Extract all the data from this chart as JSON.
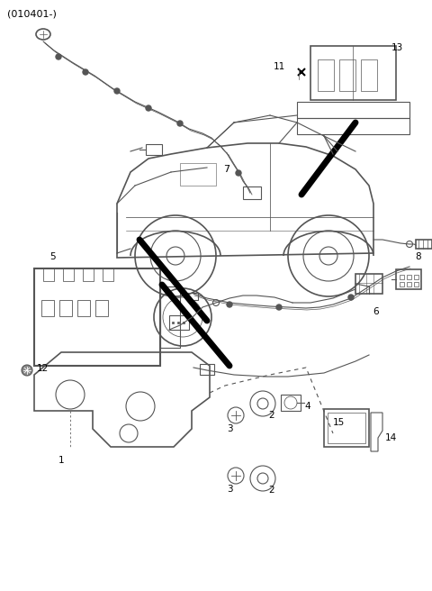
{
  "title": "(010401-)",
  "bg_color": "#ffffff",
  "lc": "#555555",
  "lc_dark": "#333333",
  "figsize": [
    4.8,
    6.56
  ],
  "dpi": 100
}
